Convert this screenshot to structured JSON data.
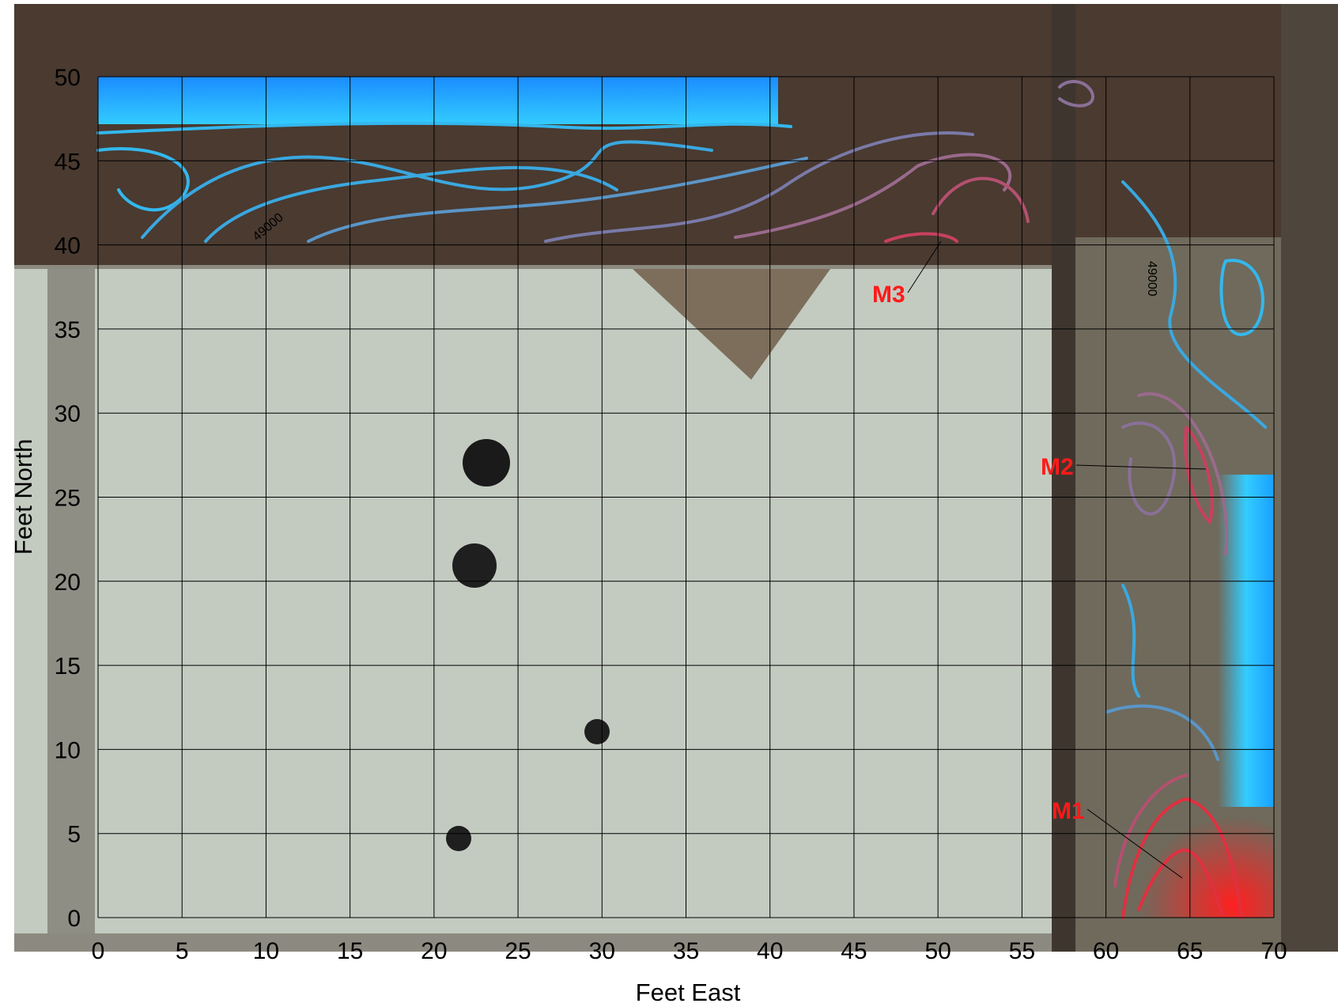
{
  "chart_data": {
    "type": "contour-map",
    "x_label": "Feet East",
    "y_label": "Feet North",
    "xlim": [
      0,
      70
    ],
    "ylim": [
      0,
      50
    ],
    "xticks": [
      0,
      5,
      10,
      15,
      20,
      25,
      30,
      35,
      40,
      45,
      50,
      55,
      60,
      65,
      70
    ],
    "yticks": [
      0,
      5,
      10,
      15,
      20,
      25,
      30,
      35,
      40,
      45,
      50
    ],
    "grid": true,
    "annotations": [
      "M1",
      "M2",
      "M3"
    ],
    "contour_labels": [
      "49000",
      "49000"
    ]
  }
}
